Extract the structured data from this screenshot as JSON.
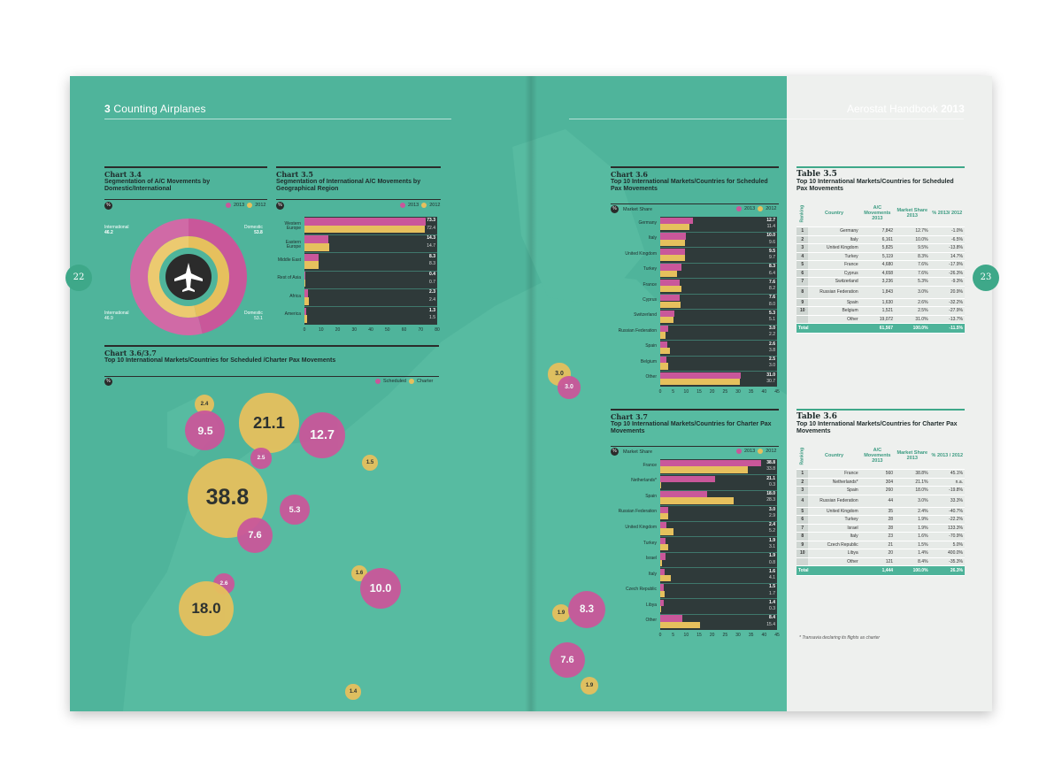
{
  "header": {
    "section_num": "3",
    "section_title": "Counting Airplanes",
    "book_title": "Aerostat Handbook",
    "book_year": "2013"
  },
  "pages": {
    "left": "22",
    "right": "23"
  },
  "chart_data": [
    {
      "id": "chart_3_4",
      "type": "pie",
      "label": "Chart 3.4",
      "title": "Segmentation of A/C Movements by Domestic/International",
      "unit": "%",
      "legend": [
        {
          "name": "2013",
          "color": "#c9579a"
        },
        {
          "name": "2012",
          "color": "#e6c05d"
        }
      ],
      "series": [
        {
          "name": "2013",
          "segments": [
            {
              "name": "International",
              "value": 46.2
            },
            {
              "name": "Domestic",
              "value": 53.8
            }
          ]
        },
        {
          "name": "2012",
          "segments": [
            {
              "name": "International",
              "value": 46.9
            },
            {
              "name": "Domestic",
              "value": 53.1
            }
          ]
        }
      ],
      "labels": {
        "intl_2013": "International",
        "intl_2013_val": "46.2",
        "dom_2013": "Domestic",
        "dom_2013_val": "53.8",
        "intl_2012": "International",
        "intl_2012_val": "46.9",
        "dom_2012": "Domestic",
        "dom_2012_val": "53.1"
      }
    },
    {
      "id": "chart_3_5",
      "type": "bar",
      "label": "Chart 3.5",
      "title": "Segmentation of International A/C Movements by Geographical Region",
      "unit": "%",
      "legend": [
        {
          "name": "2013",
          "color": "#c9579a"
        },
        {
          "name": "2012",
          "color": "#e6c05d"
        }
      ],
      "categories": [
        "Western Europe",
        "Eastern Europe",
        "Middle East",
        "Rest of Asia",
        "Africa",
        "America"
      ],
      "series": [
        {
          "name": "2013",
          "values": [
            73.3,
            14.3,
            8.3,
            0.4,
            2.3,
            1.3
          ]
        },
        {
          "name": "2012",
          "values": [
            72.4,
            14.7,
            8.3,
            0.7,
            2.4,
            1.5
          ]
        }
      ],
      "value_labels": [
        [
          "73.3",
          "72.4"
        ],
        [
          "14.3",
          "14.7"
        ],
        [
          "8.3",
          "8.3"
        ],
        [
          "0.4",
          "0.7"
        ],
        [
          "2.3",
          "2.4"
        ],
        [
          "1.3",
          "1.5"
        ]
      ],
      "xlim": [
        0,
        80
      ],
      "xticks": [
        "0",
        "10",
        "20",
        "30",
        "40",
        "50",
        "60",
        "70",
        "80"
      ]
    },
    {
      "id": "chart_3_6",
      "type": "bar",
      "label": "Chart 3.6",
      "title": "Top 10 International Markets/Countries for Scheduled Pax Movements",
      "unit": "%",
      "axis_label": "Market Share",
      "legend": [
        {
          "name": "2013",
          "color": "#c9579a"
        },
        {
          "name": "2012",
          "color": "#e6c05d"
        }
      ],
      "categories": [
        "Germany",
        "Italy",
        "United Kingdom",
        "Turkey",
        "France",
        "Cyprus",
        "Switzerland",
        "Russian Federation",
        "Spain",
        "Belgium",
        "Other"
      ],
      "series": [
        {
          "name": "2013",
          "values": [
            12.7,
            10.0,
            9.5,
            8.3,
            7.6,
            7.6,
            5.3,
            3.0,
            2.6,
            2.5,
            31.0
          ]
        },
        {
          "name": "2012",
          "values": [
            11.4,
            9.6,
            9.7,
            6.4,
            8.2,
            8.0,
            5.1,
            2.2,
            3.8,
            3.0,
            30.7
          ]
        }
      ],
      "value_labels": [
        [
          "12.7",
          "11.4"
        ],
        [
          "10.0",
          "9.6"
        ],
        [
          "9.5",
          "9.7"
        ],
        [
          "8.3",
          "6.4"
        ],
        [
          "7.6",
          "8.2"
        ],
        [
          "7.6",
          "8.0"
        ],
        [
          "5.3",
          "5.1"
        ],
        [
          "3.0",
          "2.2"
        ],
        [
          "2.6",
          "3.8"
        ],
        [
          "2.5",
          "3.0"
        ],
        [
          "31.0",
          "30.7"
        ]
      ],
      "xlim": [
        0,
        45
      ],
      "xticks": [
        "0",
        "5",
        "10",
        "15",
        "20",
        "25",
        "30",
        "35",
        "40",
        "45"
      ]
    },
    {
      "id": "chart_3_7",
      "type": "bar",
      "label": "Chart 3.7",
      "title": "Top 10 International Markets/Countries for Charter Pax Movements",
      "unit": "%",
      "axis_label": "Market Share",
      "legend": [
        {
          "name": "2013",
          "color": "#c9579a"
        },
        {
          "name": "2012",
          "color": "#e6c05d"
        }
      ],
      "categories": [
        "France",
        "Netherlands*",
        "Spain",
        "Russian Federation",
        "United Kingdom",
        "Turkey",
        "Israel",
        "Italy",
        "Czech Republic",
        "Libya",
        "Other"
      ],
      "series": [
        {
          "name": "2013",
          "values": [
            38.8,
            21.1,
            18.0,
            3.0,
            2.4,
            1.9,
            1.9,
            1.6,
            1.5,
            1.4,
            8.4
          ]
        },
        {
          "name": "2012",
          "values": [
            33.8,
            0.3,
            28.3,
            2.9,
            5.2,
            3.1,
            0.8,
            4.1,
            1.7,
            0.3,
            15.4
          ]
        }
      ],
      "value_labels": [
        [
          "38.8",
          "33.8"
        ],
        [
          "21.1",
          "0.3"
        ],
        [
          "18.0",
          "28.3"
        ],
        [
          "3.0",
          "2.9"
        ],
        [
          "2.4",
          "5.2"
        ],
        [
          "1.9",
          "3.1"
        ],
        [
          "1.9",
          "0.8"
        ],
        [
          "1.6",
          "4.1"
        ],
        [
          "1.5",
          "1.7"
        ],
        [
          "1.4",
          "0.3"
        ],
        [
          "8.4",
          "15.4"
        ]
      ],
      "xlim": [
        0,
        45
      ],
      "xticks": [
        "0",
        "5",
        "10",
        "15",
        "20",
        "25",
        "30",
        "35",
        "40",
        "45"
      ]
    },
    {
      "id": "chart_3_6_3_7_map",
      "type": "scatter",
      "label": "Chart 3.6/3.7",
      "title": "Top 10 International Markets/Countries for Scheduled /Charter Pax Movements",
      "unit": "%",
      "legend": [
        {
          "name": "Scheduled",
          "color": "#c9579a"
        },
        {
          "name": "Charter",
          "color": "#e6c05d"
        }
      ],
      "points": [
        {
          "series": "Charter",
          "value": "2.4",
          "lx": 231,
          "ly": 457
        },
        {
          "series": "Scheduled",
          "value": "9.5",
          "lx": 232,
          "ly": 487
        },
        {
          "series": "Charter",
          "value": "21.1",
          "lx": 304,
          "ly": 478
        },
        {
          "series": "Scheduled",
          "value": "12.7",
          "lx": 364,
          "ly": 492
        },
        {
          "series": "Scheduled",
          "value": "2.5",
          "lx": 295,
          "ly": 518
        },
        {
          "series": "Charter",
          "value": "1.5",
          "lx": 418,
          "ly": 523
        },
        {
          "series": "Charter",
          "value": "38.8",
          "lx": 257,
          "ly": 563
        },
        {
          "series": "Scheduled",
          "value": "5.3",
          "lx": 333,
          "ly": 576
        },
        {
          "series": "Scheduled",
          "value": "7.6",
          "lx": 288,
          "ly": 605
        },
        {
          "series": "Charter",
          "value": "1.6",
          "lx": 406,
          "ly": 648
        },
        {
          "series": "Scheduled",
          "value": "10.0",
          "lx": 430,
          "ly": 665
        },
        {
          "series": "Scheduled",
          "value": "2.6",
          "lx": 253,
          "ly": 660
        },
        {
          "series": "Charter",
          "value": "18.0",
          "lx": 233,
          "ly": 688
        },
        {
          "series": "Charter",
          "value": "1.4",
          "lx": 399,
          "ly": 782
        },
        {
          "series": "Charter",
          "value": "3.0",
          "lx": 632,
          "ly": 423
        },
        {
          "series": "Scheduled",
          "value": "3.0",
          "lx": 643,
          "ly": 438
        },
        {
          "series": "Charter",
          "value": "1.9",
          "lx": 634,
          "ly": 693
        },
        {
          "series": "Scheduled",
          "value": "8.3",
          "lx": 663,
          "ly": 689
        },
        {
          "series": "Scheduled",
          "value": "7.6",
          "lx": 641,
          "ly": 746
        },
        {
          "series": "Charter",
          "value": "1.9",
          "lx": 666,
          "ly": 775
        }
      ]
    }
  ],
  "table_3_5": {
    "label": "Table 3.5",
    "title": "Top 10 International Markets/Countries for Scheduled Pax Movements",
    "headers": [
      "Ranking",
      "Country",
      "A/C Movements 2013",
      "Market Share 2013",
      "% 2013/ 2012"
    ],
    "rows": [
      [
        "1",
        "Germany",
        "7,842",
        "12.7%",
        "-1.0%"
      ],
      [
        "2",
        "Italy",
        "6,161",
        "10.0%",
        "-6.5%"
      ],
      [
        "3",
        "United Kingdom",
        "5,825",
        "9.5%",
        "-13.8%"
      ],
      [
        "4",
        "Turkey",
        "5,119",
        "8.3%",
        "14.7%"
      ],
      [
        "5",
        "France",
        "4,680",
        "7.6%",
        "-17.9%"
      ],
      [
        "6",
        "Cyprus",
        "4,658",
        "7.6%",
        "-26.3%"
      ],
      [
        "7",
        "Switzerland",
        "3,236",
        "5.3%",
        "-9.3%"
      ],
      [
        "8",
        "Russian Federation",
        "1,843",
        "3.0%",
        "20.9%"
      ],
      [
        "9",
        "Spain",
        "1,630",
        "2.6%",
        "-32.2%"
      ],
      [
        "10",
        "Belgium",
        "1,521",
        "2.5%",
        "-27.9%"
      ],
      [
        "",
        "Other",
        "19,072",
        "31.0%",
        "-13.7%"
      ]
    ],
    "total": [
      "Total",
      "61,567",
      "100.0%",
      "-11.5%"
    ]
  },
  "table_3_6": {
    "label": "Table 3.6",
    "title": "Top 10 International Markets/Countries for Charter Pax Movements",
    "headers": [
      "Ranking",
      "Country",
      "A/C Movements 2013",
      "Market Share 2013",
      "% 2013 / 2012"
    ],
    "rows": [
      [
        "1",
        "France",
        "560",
        "38.8%",
        "45.1%"
      ],
      [
        "2",
        "Netherlands*",
        "304",
        "21.1%",
        "n.a."
      ],
      [
        "3",
        "Spain",
        "260",
        "18.0%",
        "-19.8%"
      ],
      [
        "4",
        "Russian Federation",
        "44",
        "3.0%",
        "33.3%"
      ],
      [
        "5",
        "United Kingdom",
        "35",
        "2.4%",
        "-40.7%"
      ],
      [
        "6",
        "Turkey",
        "28",
        "1.9%",
        "-22.2%"
      ],
      [
        "7",
        "Israel",
        "28",
        "1.9%",
        "133.3%"
      ],
      [
        "8",
        "Italy",
        "23",
        "1.6%",
        "-70.9%"
      ],
      [
        "9",
        "Czech Republic",
        "21",
        "1.5%",
        "5.0%"
      ],
      [
        "10",
        "Libya",
        "20",
        "1.4%",
        "400.0%"
      ],
      [
        "",
        "Other",
        "121",
        "8.4%",
        "-35.3%"
      ]
    ],
    "total": [
      "Total",
      "1,444",
      "100.0%",
      "26.3%"
    ],
    "footnote": "* Transavia declaring its flights as charter"
  },
  "colors": {
    "teal": "#4fb49b",
    "pink": "#c9579a",
    "yellow": "#e6c05d",
    "dark": "#2f3a3a",
    "paper": "#eef0ee"
  }
}
